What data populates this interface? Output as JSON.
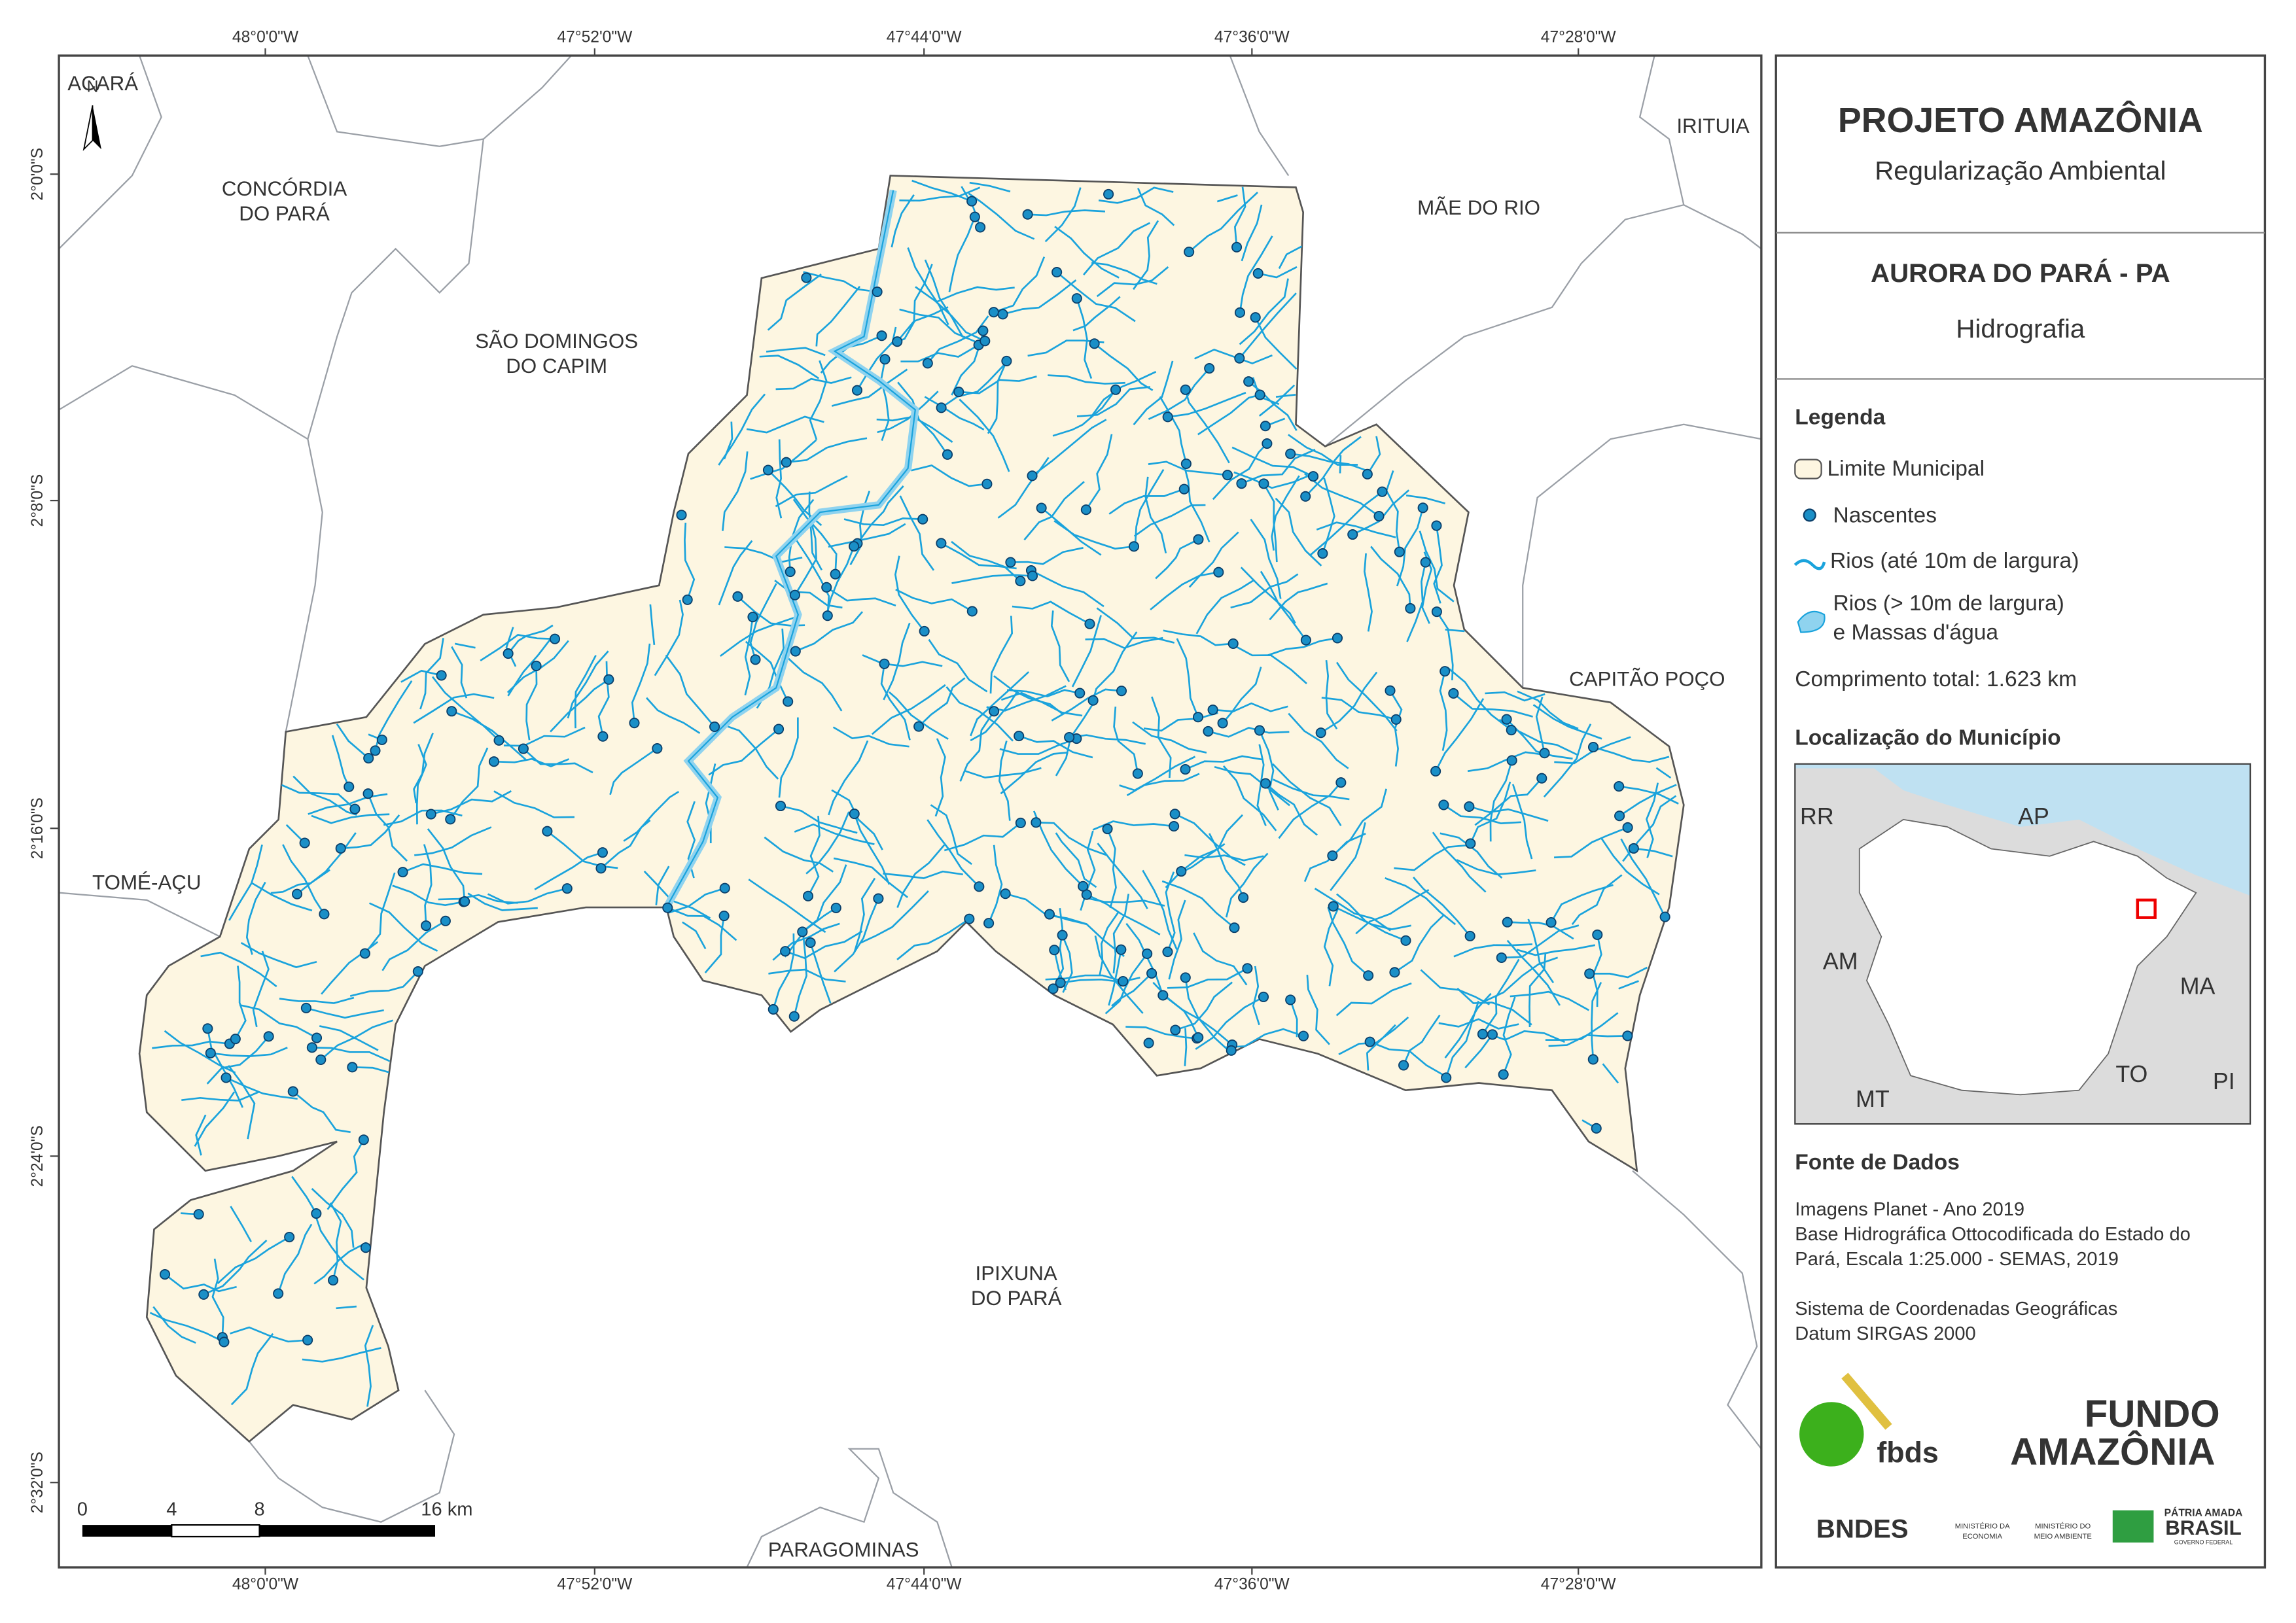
{
  "map": {
    "top_ticks": [
      "48°0'0\"W",
      "47°52'0\"W",
      "47°44'0\"W",
      "47°36'0\"W",
      "47°28'0\"W"
    ],
    "bottom_ticks": [
      "48°0'0\"W",
      "47°52'0\"W",
      "47°44'0\"W",
      "47°36'0\"W",
      "47°28'0\"W"
    ],
    "left_ticks": [
      "2°0'0\"S",
      "2°8'0\"S",
      "2°16'0\"S",
      "2°24'0\"S",
      "2°32'0\"S"
    ],
    "north": "N",
    "neighbors": [
      [
        "ACARÁ"
      ],
      [
        "CONCÓRDIA",
        "DO PARÁ"
      ],
      [
        "SÃO DOMINGOS",
        "DO CAPIM"
      ],
      [
        "IRITUIA"
      ],
      [
        "MÃE DO RIO"
      ],
      [
        "CAPITÃO POÇO"
      ],
      [
        "TOMÉ-AÇU"
      ],
      [
        "IPIXUNA",
        "DO PARÁ"
      ],
      [
        "PARAGOMINAS"
      ]
    ],
    "scale_labels": [
      "0",
      "4",
      "8",
      "16 km"
    ]
  },
  "panel": {
    "title": "PROJETO AMAZÔNIA",
    "subtitle": "Regularização Ambiental",
    "municipality": "AURORA DO PARÁ - PA",
    "theme": "Hidrografia",
    "legend": {
      "title": "Legenda",
      "items": [
        [
          "Limite Municipal"
        ],
        [
          "Nascentes"
        ],
        [
          "Rios (até 10m de largura)"
        ],
        [
          "Rios (> 10m de largura)",
          "e Massas d'água"
        ]
      ],
      "total": "Comprimento total:  1.623 km"
    },
    "location": {
      "title": "Localização do Município",
      "labels": [
        "RR",
        "AP",
        "AM",
        "MA",
        "TO",
        "MT",
        "PI"
      ]
    },
    "sources": {
      "title": "Fonte de Dados",
      "lines": [
        "Imagens Planet - Ano 2019",
        "Base Hidrográfica Ottocodificada do Estado do",
        "Pará, Escala 1:25.000 - SEMAS, 2019",
        "",
        "Sistema de Coordenadas Geográficas",
        "Datum SIRGAS 2000"
      ]
    },
    "logos": {
      "fbds": "fbds",
      "fundo": "FUNDO",
      "amazonia": "AMAZÔNIA",
      "bndes": "BNDES",
      "min1": [
        "MINISTÉRIO DA",
        "ECONOMIA"
      ],
      "min2": [
        "MINISTÉRIO DO",
        "MEIO AMBIENTE"
      ],
      "patria": "PÁTRIA AMADA",
      "brasil": "BRASIL",
      "governo": "GOVERNO FEDERAL"
    }
  }
}
